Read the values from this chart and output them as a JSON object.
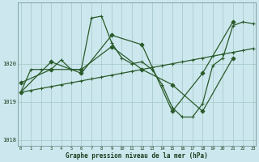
{
  "title": "Graphe pression niveau de la mer (hPa)",
  "background_color": "#cce8ee",
  "plot_bg_color": "#cce8ee",
  "line_color": "#2a5a2a",
  "grid_color": "#aacccc",
  "series": [
    {
      "x": [
        0,
        1,
        2,
        3,
        4,
        5,
        6,
        7,
        8,
        9,
        10,
        11,
        12,
        13,
        14,
        15,
        16,
        17,
        18,
        19,
        20,
        21,
        22,
        23
      ],
      "y": [
        1019.25,
        1019.3,
        1019.35,
        1019.4,
        1019.45,
        1019.5,
        1019.55,
        1019.6,
        1019.65,
        1019.7,
        1019.75,
        1019.8,
        1019.85,
        1019.9,
        1019.95,
        1020.0,
        1020.05,
        1020.1,
        1020.15,
        1020.2,
        1020.25,
        1020.3,
        1020.35,
        1020.4
      ]
    },
    {
      "x": [
        0,
        1,
        2,
        3,
        4,
        5,
        6,
        7,
        8,
        9,
        10,
        11,
        12,
        13,
        14,
        15,
        16,
        17,
        18,
        19,
        20,
        21,
        22,
        23
      ],
      "y": [
        1019.25,
        1019.85,
        1019.85,
        1019.85,
        1020.1,
        1019.85,
        1019.85,
        1021.2,
        1021.25,
        1020.55,
        1020.15,
        1020.0,
        1020.05,
        1019.85,
        1019.45,
        1018.85,
        1018.6,
        1018.6,
        1018.95,
        1019.95,
        1020.15,
        1021.0,
        1021.1,
        1021.05
      ]
    },
    {
      "x": [
        0,
        3,
        6,
        9,
        12,
        15,
        18,
        21
      ],
      "y": [
        1019.5,
        1019.85,
        1019.85,
        1020.45,
        1019.85,
        1019.45,
        1018.75,
        1020.15
      ]
    },
    {
      "x": [
        0,
        3,
        6,
        9,
        12,
        15,
        18,
        21
      ],
      "y": [
        1019.25,
        1020.05,
        1019.75,
        1020.75,
        1020.5,
        1018.75,
        1019.75,
        1021.1
      ]
    }
  ],
  "yticks": [
    1018,
    1019,
    1020
  ],
  "xticks": [
    0,
    1,
    2,
    3,
    4,
    5,
    6,
    7,
    8,
    9,
    10,
    11,
    12,
    13,
    14,
    15,
    16,
    17,
    18,
    19,
    20,
    21,
    22,
    23
  ],
  "xlim": [
    -0.3,
    23.3
  ],
  "ylim": [
    1017.85,
    1021.6
  ],
  "markersize": 2.5,
  "linewidth": 0.9
}
